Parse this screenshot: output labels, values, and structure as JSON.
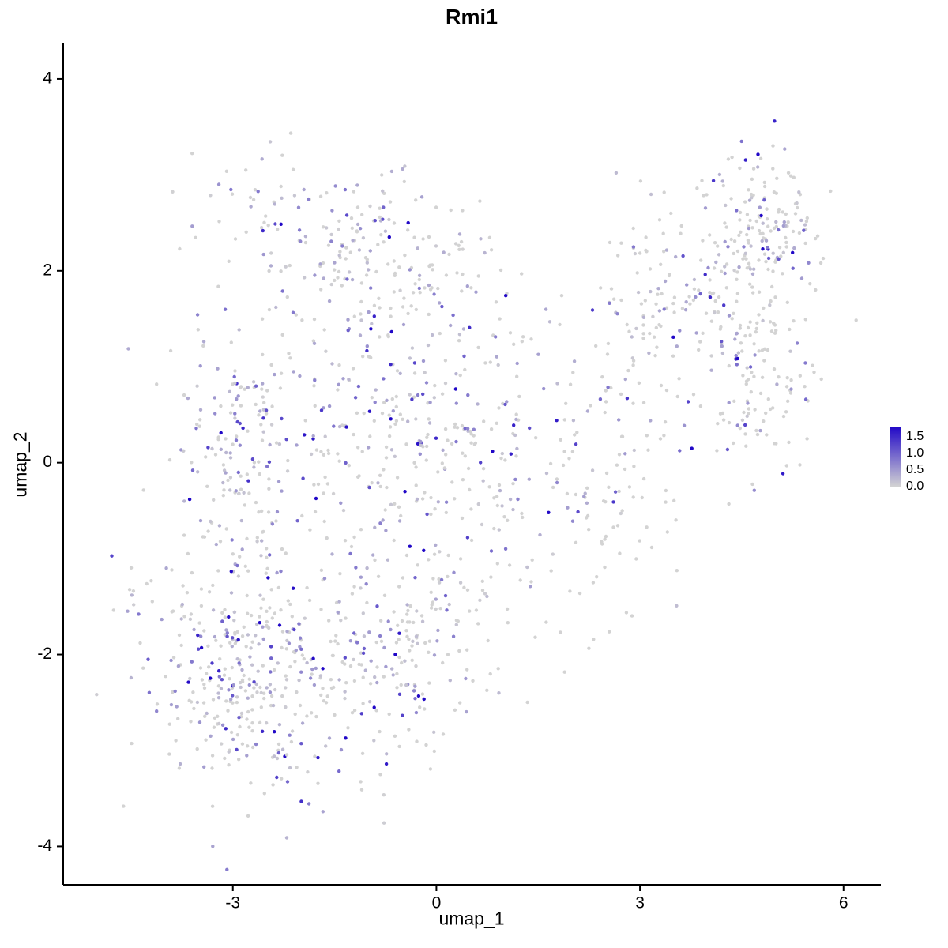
{
  "chart_data": {
    "type": "scatter",
    "title": "Rmi1",
    "xlabel": "umap_1",
    "ylabel": "umap_2",
    "xlim": [
      -5.5,
      6.55
    ],
    "ylim": [
      -4.4,
      4.37
    ],
    "x_ticks": [
      -3,
      0,
      3,
      6
    ],
    "y_ticks": [
      -4,
      -2,
      0,
      2,
      4
    ],
    "grid": false,
    "legend": {
      "position": "right",
      "domain": [
        0,
        1.8
      ],
      "entries": [
        {
          "label": "1.5",
          "value": 1.5
        },
        {
          "label": "1.0",
          "value": 1.0
        },
        {
          "label": "0.5",
          "value": 0.5
        },
        {
          "label": "0.0",
          "value": 0.0
        }
      ]
    },
    "color_scale": {
      "min": 0,
      "max": 1.5,
      "low": "#D3D3D3",
      "high": "#2108C7"
    },
    "point_radius": 2.2,
    "seed": 7,
    "value_mean": 0.5,
    "clusters": [
      {
        "name": "far-left-outliers",
        "cx": -4.6,
        "cy": -1.25,
        "sx": 0.12,
        "sy": 0.18,
        "rot": 0,
        "n": 8,
        "expr": 0.5
      },
      {
        "name": "bottom-left-dense",
        "cx": -2.8,
        "cy": -2.25,
        "sx": 0.75,
        "sy": 0.62,
        "rot": -18,
        "n": 330,
        "expr": 0.5
      },
      {
        "name": "left-middle",
        "cx": -2.7,
        "cy": 0.1,
        "sx": 0.58,
        "sy": 0.85,
        "rot": 0,
        "n": 230,
        "expr": 0.5
      },
      {
        "name": "top-arc",
        "cx": -1.3,
        "cy": 2.3,
        "sx": 1.05,
        "sy": 0.42,
        "rot": -8,
        "n": 200,
        "expr": 0.4
      },
      {
        "name": "central",
        "cx": -0.1,
        "cy": 0.3,
        "sx": 0.95,
        "sy": 0.85,
        "rot": 0,
        "n": 330,
        "expr": 0.45
      },
      {
        "name": "central-bottom",
        "cx": -0.55,
        "cy": -2.0,
        "sx": 0.9,
        "sy": 0.58,
        "rot": 12,
        "n": 220,
        "expr": 0.45
      },
      {
        "name": "right-bridge",
        "cx": 2.4,
        "cy": -0.1,
        "sx": 0.75,
        "sy": 0.85,
        "rot": -30,
        "n": 130,
        "expr": 0.25
      },
      {
        "name": "right-arm",
        "cx": 3.8,
        "cy": 1.6,
        "sx": 0.75,
        "sy": 0.5,
        "rot": -28,
        "n": 150,
        "expr": 0.35
      },
      {
        "name": "top-right",
        "cx": 4.75,
        "cy": 2.5,
        "sx": 0.45,
        "sy": 0.38,
        "rot": 0,
        "n": 150,
        "expr": 0.35
      },
      {
        "name": "right-column",
        "cx": 4.85,
        "cy": 1.1,
        "sx": 0.38,
        "sy": 0.6,
        "rot": 0,
        "n": 120,
        "expr": 0.3
      }
    ],
    "style": {
      "axis_color": "#000000",
      "tick_label_size": 21,
      "tick_length": 8,
      "legend_label_size": 16
    }
  }
}
